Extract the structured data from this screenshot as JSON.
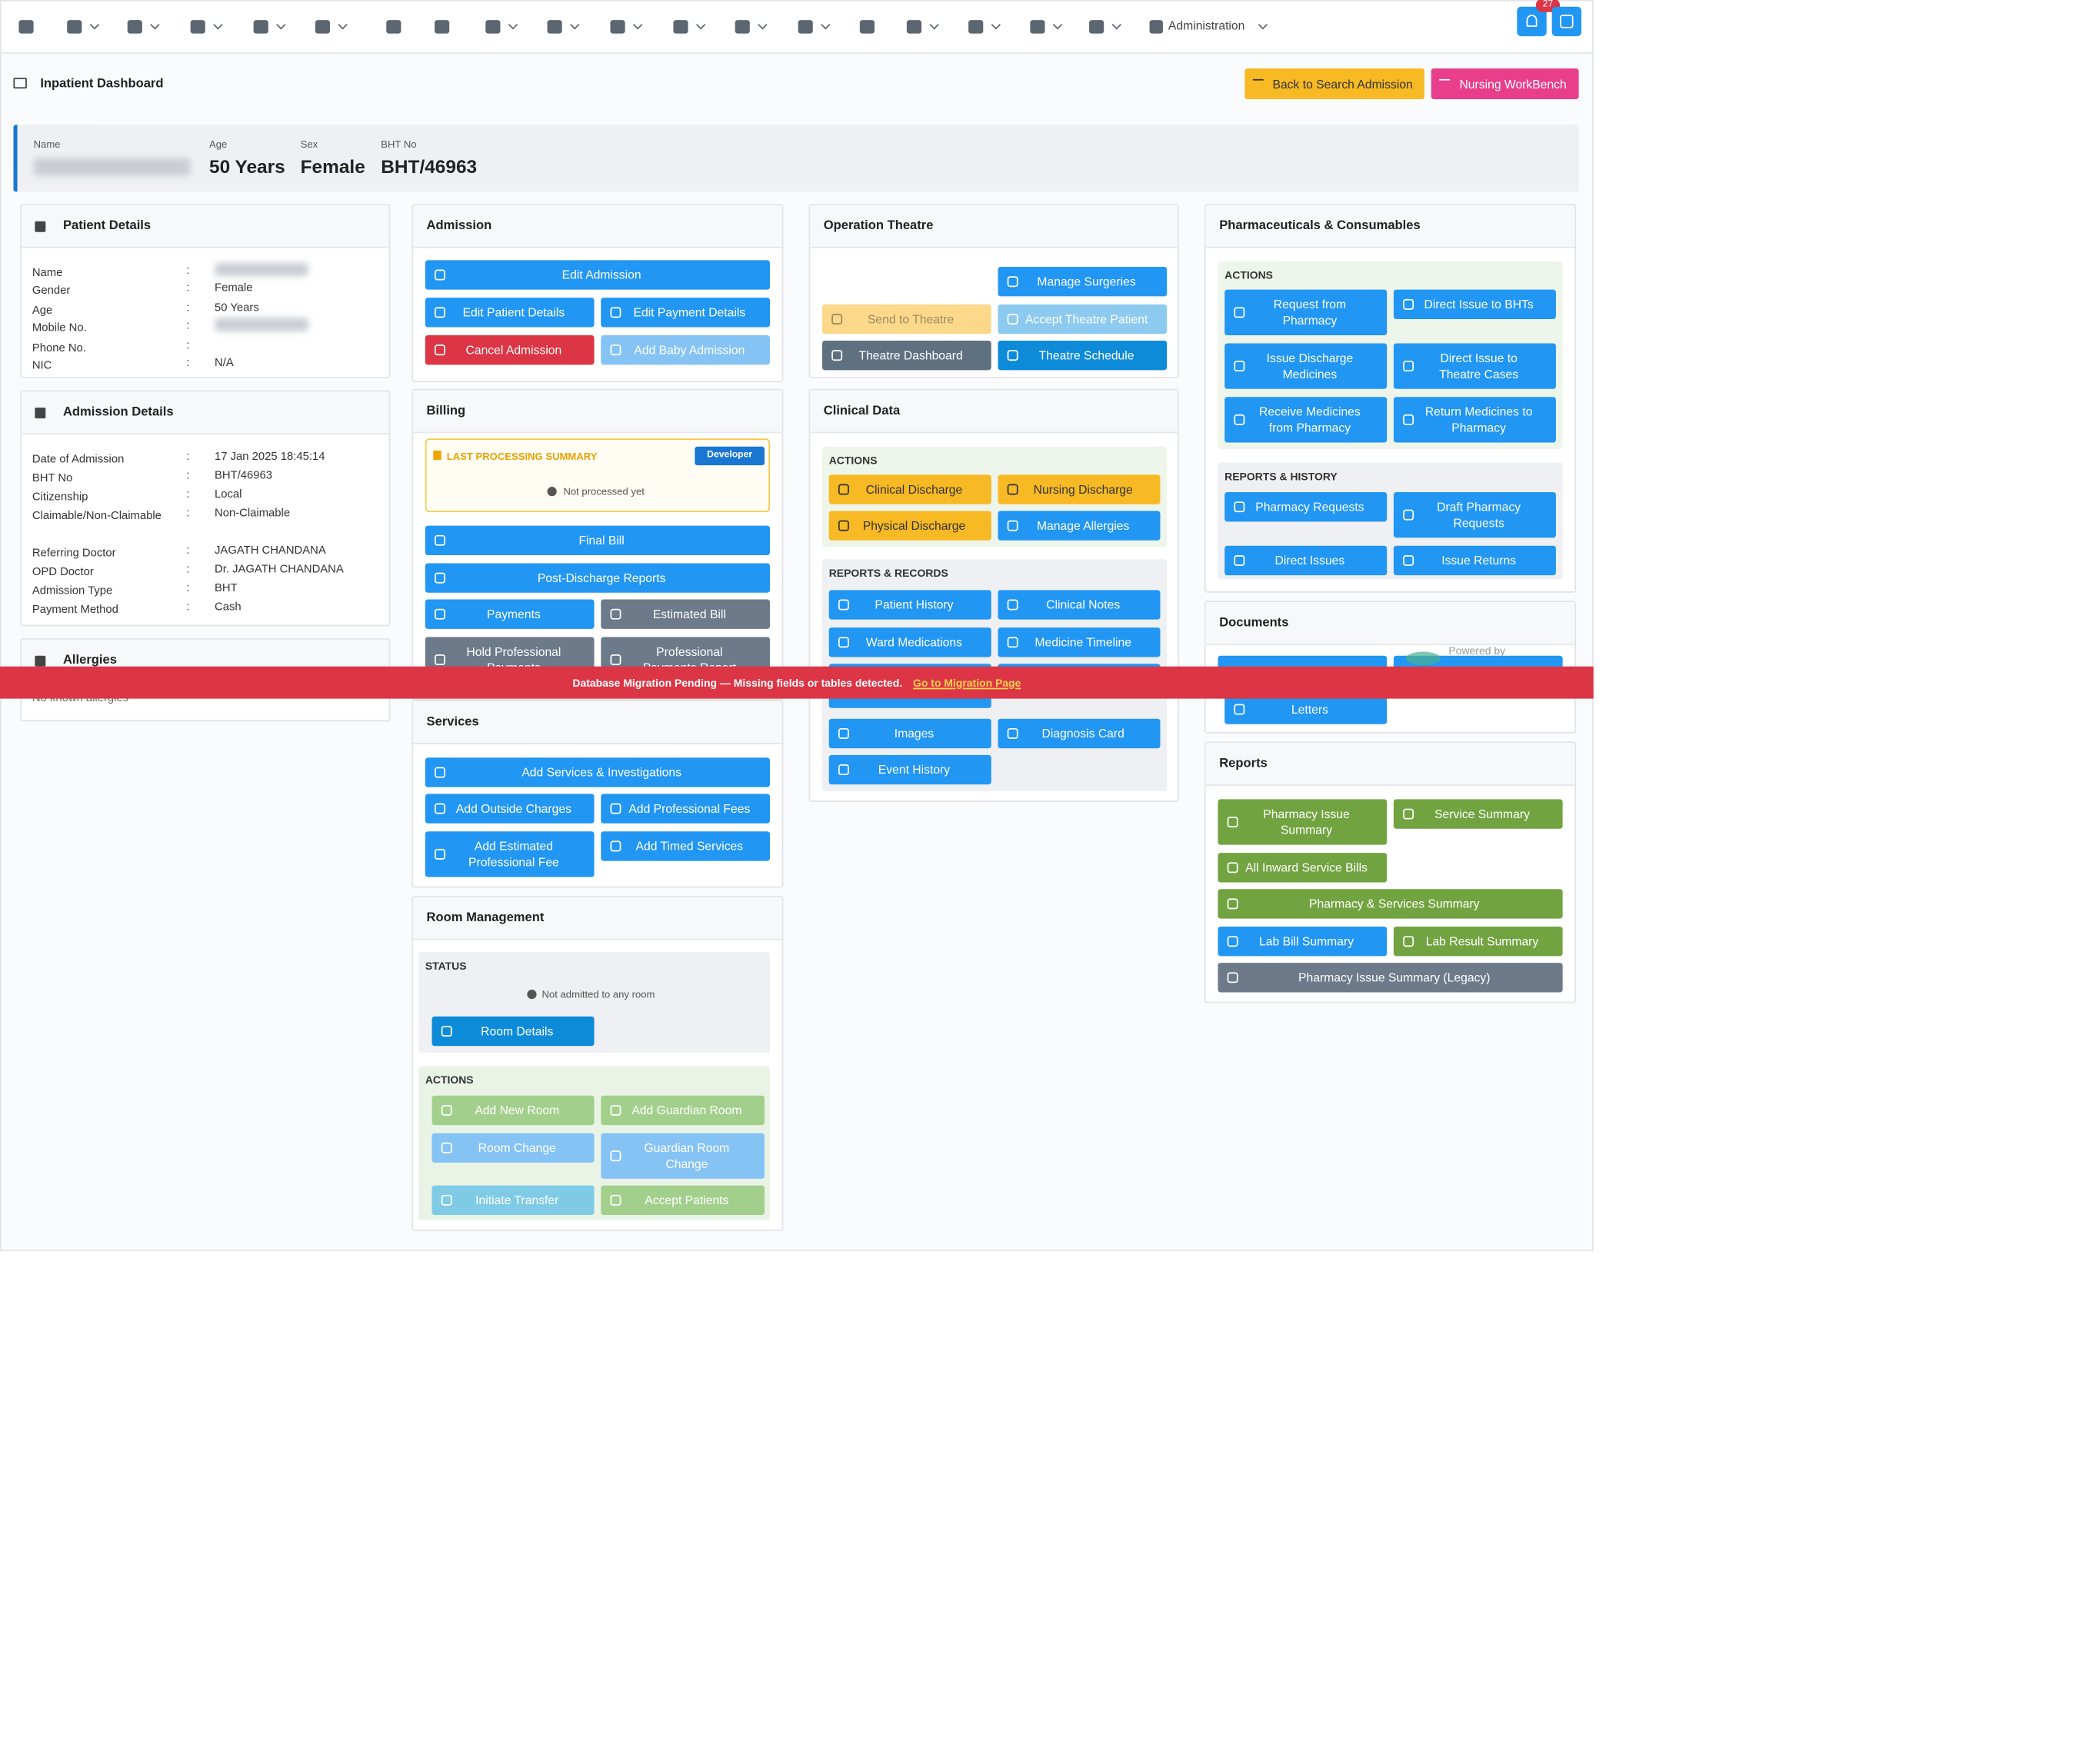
{
  "nav": {
    "admin": "Administration",
    "badge": "27"
  },
  "header": {
    "title": "Inpatient Dashboard",
    "buttons": [
      "Back to Search Admission",
      "Nursing WorkBench"
    ]
  },
  "patient_strip": [
    {
      "label": "Name"
    },
    {
      "label": "Age",
      "value": "50 Years"
    },
    {
      "label": "Sex",
      "value": "Female"
    },
    {
      "label": "BHT No",
      "value": "BHT/46963"
    }
  ],
  "banner": {
    "text": "Database Migration Pending — Missing fields or tables detected.",
    "link": "Go to Migration Page"
  },
  "panels": [
    {
      "title": "Patient Details",
      "rows": [
        {
          "label": "Name"
        },
        {
          "label": "Gender",
          "value": "Female"
        },
        {
          "label": "Age",
          "value": "50 Years"
        },
        {
          "label": "Mobile No."
        },
        {
          "label": "Phone No."
        },
        {
          "label": "NIC",
          "value": "N/A"
        }
      ]
    },
    {
      "title": "Admission Details",
      "rows": [
        {
          "label": "Date of Admission",
          "value": "17 Jan 2025 18:45:14"
        },
        {
          "label": "BHT No",
          "value": "BHT/46963"
        },
        {
          "label": "Citizenship",
          "value": "Local"
        },
        {
          "label": "Claimable/Non-Claimable",
          "value": "Non-Claimable"
        },
        {
          "label": "Referring Doctor",
          "value": "JAGATH CHANDANA"
        },
        {
          "label": "OPD Doctor",
          "value": "Dr. JAGATH CHANDANA"
        },
        {
          "label": "Admission Type",
          "value": "BHT"
        },
        {
          "label": "Payment Method",
          "value": "Cash"
        }
      ]
    },
    {
      "title": "Allergies",
      "text": "No known allergies"
    },
    {
      "title": "Admission",
      "buttons": [
        "Edit Admission",
        "Edit Patient Details",
        "Edit Payment Details",
        "Cancel Admission",
        "Add Baby Admission"
      ]
    },
    {
      "title": "Billing",
      "summary": {
        "title": "LAST PROCESSING SUMMARY",
        "badge": "Developer",
        "text": "Not processed yet"
      },
      "buttons": [
        "Final Bill",
        "Post-Discharge Reports",
        "Payments",
        "Estimated Bill",
        "Hold Professional Payments",
        "Professional Payments Report"
      ]
    },
    {
      "title": "Services",
      "buttons": [
        "Add Services & Investigations",
        "Add Outside Charges",
        "Add Professional Fees",
        "Add Estimated Professional Fee",
        "Add Timed Services"
      ]
    },
    {
      "title": "Room Management",
      "sections": [
        {
          "title": "STATUS",
          "text": "Not admitted to any room",
          "buttons": [
            "Room Details"
          ]
        },
        {
          "title": "ACTIONS",
          "buttons": [
            "Add New Room",
            "Add Guardian Room",
            "Room Change",
            "Guardian Room Change",
            "Initiate Transfer",
            "Accept Patients"
          ]
        }
      ]
    },
    {
      "title": "Operation Theatre",
      "buttons": [
        "Manage Surgeries",
        "Send to Theatre",
        "Accept Theatre Patient",
        "Theatre Dashboard",
        "Theatre Schedule"
      ]
    },
    {
      "title": "Clinical Data",
      "sections": [
        {
          "title": "ACTIONS",
          "buttons": [
            "Clinical Discharge",
            "Nursing Discharge",
            "Physical Discharge",
            "Manage Allergies"
          ]
        },
        {
          "title": "REPORTS & RECORDS",
          "buttons": [
            "Patient History",
            "Clinical Notes",
            "Ward Medications",
            "Medicine Timeline",
            "Images",
            "Diagnosis Card",
            "Event History"
          ]
        }
      ]
    },
    {
      "title": "Pharmaceuticals & Consumables",
      "sections": [
        {
          "title": "ACTIONS",
          "buttons": [
            "Request from Pharmacy",
            "Direct Issue to BHTs",
            "Issue Discharge Medicines",
            "Direct Issue to Theatre Cases",
            "Receive Medicines from Pharmacy",
            "Return Medicines to Pharmacy"
          ]
        },
        {
          "title": "REPORTS & HISTORY",
          "buttons": [
            "Pharmacy Requests",
            "Draft Pharmacy Requests",
            "Direct Issues",
            "Issue Returns"
          ]
        }
      ]
    },
    {
      "title": "Documents",
      "powered": "Powered by",
      "buttons": [
        "Letters"
      ]
    },
    {
      "title": "Reports",
      "buttons": [
        "Pharmacy Issue Summary",
        "Service Summary",
        "All Inward Service Bills",
        "Pharmacy & Services Summary",
        "Lab Bill Summary",
        "Lab Result Summary",
        "Pharmacy Issue Summary (Legacy)"
      ]
    }
  ]
}
